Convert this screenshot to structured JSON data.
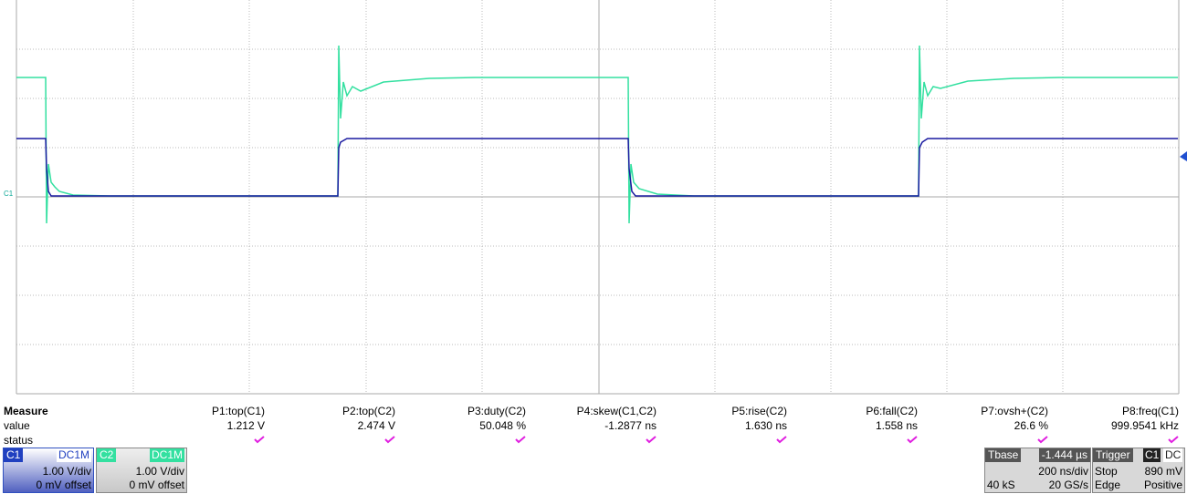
{
  "trace_label": "C1",
  "measure": {
    "title": "Measure",
    "rows": [
      "value",
      "status"
    ],
    "params": [
      {
        "name": "P1:top(C1)",
        "value": "1.212 V"
      },
      {
        "name": "P2:top(C2)",
        "value": "2.474 V"
      },
      {
        "name": "P3:duty(C2)",
        "value": "50.048 %"
      },
      {
        "name": "P4:skew(C1,C2)",
        "value": "-1.2877 ns"
      },
      {
        "name": "P5:rise(C2)",
        "value": "1.630 ns"
      },
      {
        "name": "P6:fall(C2)",
        "value": "1.558 ns"
      },
      {
        "name": "P7:ovsh+(C2)",
        "value": "26.6 %"
      },
      {
        "name": "P8:freq(C1)",
        "value": "999.9541 kHz"
      }
    ]
  },
  "channels": [
    {
      "label": "C1",
      "coupling": "DC1M",
      "scale": "1.00 V/div",
      "offset": "0 mV offset"
    },
    {
      "label": "C2",
      "coupling": "DC1M",
      "scale": "1.00 V/div",
      "offset": "0 mV offset"
    }
  ],
  "timebase": {
    "title": "Tbase",
    "delay": "-1.444 µs",
    "scale": "200 ns/div",
    "samples": "40 kS",
    "rate": "20 GS/s"
  },
  "trigger": {
    "title": "Trigger",
    "source": "C1",
    "coupling": "DC",
    "mode": "Stop",
    "level": "890 mV",
    "type": "Edge",
    "slope": "Positive"
  }
}
